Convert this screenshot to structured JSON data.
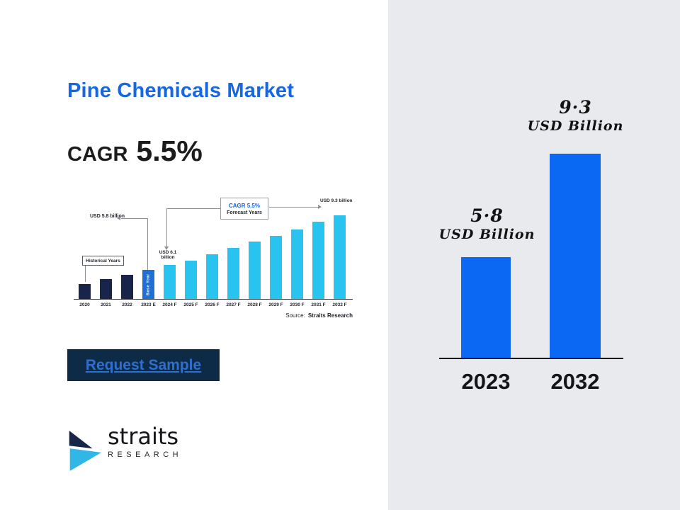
{
  "header": {
    "title": "Pine Chemicals Market",
    "cagr_label": "CAGR",
    "cagr_value": "5.5%"
  },
  "request_button": {
    "label": "Request Sample"
  },
  "logo": {
    "name": "straits",
    "subtitle": "RESEARCH"
  },
  "colors": {
    "accent_blue": "#1766e2",
    "panel_gray": "#e8eaed",
    "headline_bar_blue": "#0a68f2",
    "mini_bar_navy": "#19244a",
    "mini_bar_base_blue": "#2070d4",
    "mini_bar_cyan": "#29c3ef",
    "button_navy": "#0d2a47",
    "link_blue": "#2f6fd0"
  },
  "chart_data": [
    {
      "type": "bar",
      "title": "Pine Chemicals Market thumbnail forecast chart",
      "categories": [
        "2020",
        "2021",
        "2022",
        "2023 E",
        "2024 F",
        "2025 F",
        "2026 F",
        "2027 F",
        "2028 F",
        "2029 F",
        "2030 F",
        "2031 F",
        "2032 F"
      ],
      "values": [
        4.9,
        5.2,
        5.5,
        5.8,
        6.1,
        6.4,
        6.8,
        7.2,
        7.6,
        8.0,
        8.4,
        8.9,
        9.3
      ],
      "roles": [
        "historical",
        "historical",
        "historical",
        "base",
        "forecast",
        "forecast",
        "forecast",
        "forecast",
        "forecast",
        "forecast",
        "forecast",
        "forecast",
        "forecast"
      ],
      "unit": "USD billion",
      "ylim": [
        4,
        9.5
      ],
      "grid": false,
      "legend": "none",
      "annotations": {
        "label_5_8": "USD 5.8 billion",
        "label_6_1": "USD 6.1 billion",
        "label_9_3": "USD 9.3 billion",
        "historical_box": "Historical Years",
        "cagr_box_line1": "CAGR 5.5%",
        "cagr_box_line2": "Forecast Years",
        "base_year_bar": "Base Year",
        "source_label": "Source:",
        "source_value": "Straits Research"
      }
    },
    {
      "type": "bar",
      "title": "Pine Chemicals Market 2023 vs 2032",
      "categories": [
        "2023",
        "2032"
      ],
      "values": [
        5.8,
        9.3
      ],
      "unit": "USD Billion",
      "ylim": [
        0,
        10
      ],
      "grid": false,
      "legend": "none",
      "bars": [
        {
          "category": "2023",
          "value": 5.8,
          "value_label": "5·8",
          "unit_label": "USD Billion"
        },
        {
          "category": "2032",
          "value": 9.3,
          "value_label": "9·3",
          "unit_label": "USD Billion"
        }
      ]
    }
  ]
}
